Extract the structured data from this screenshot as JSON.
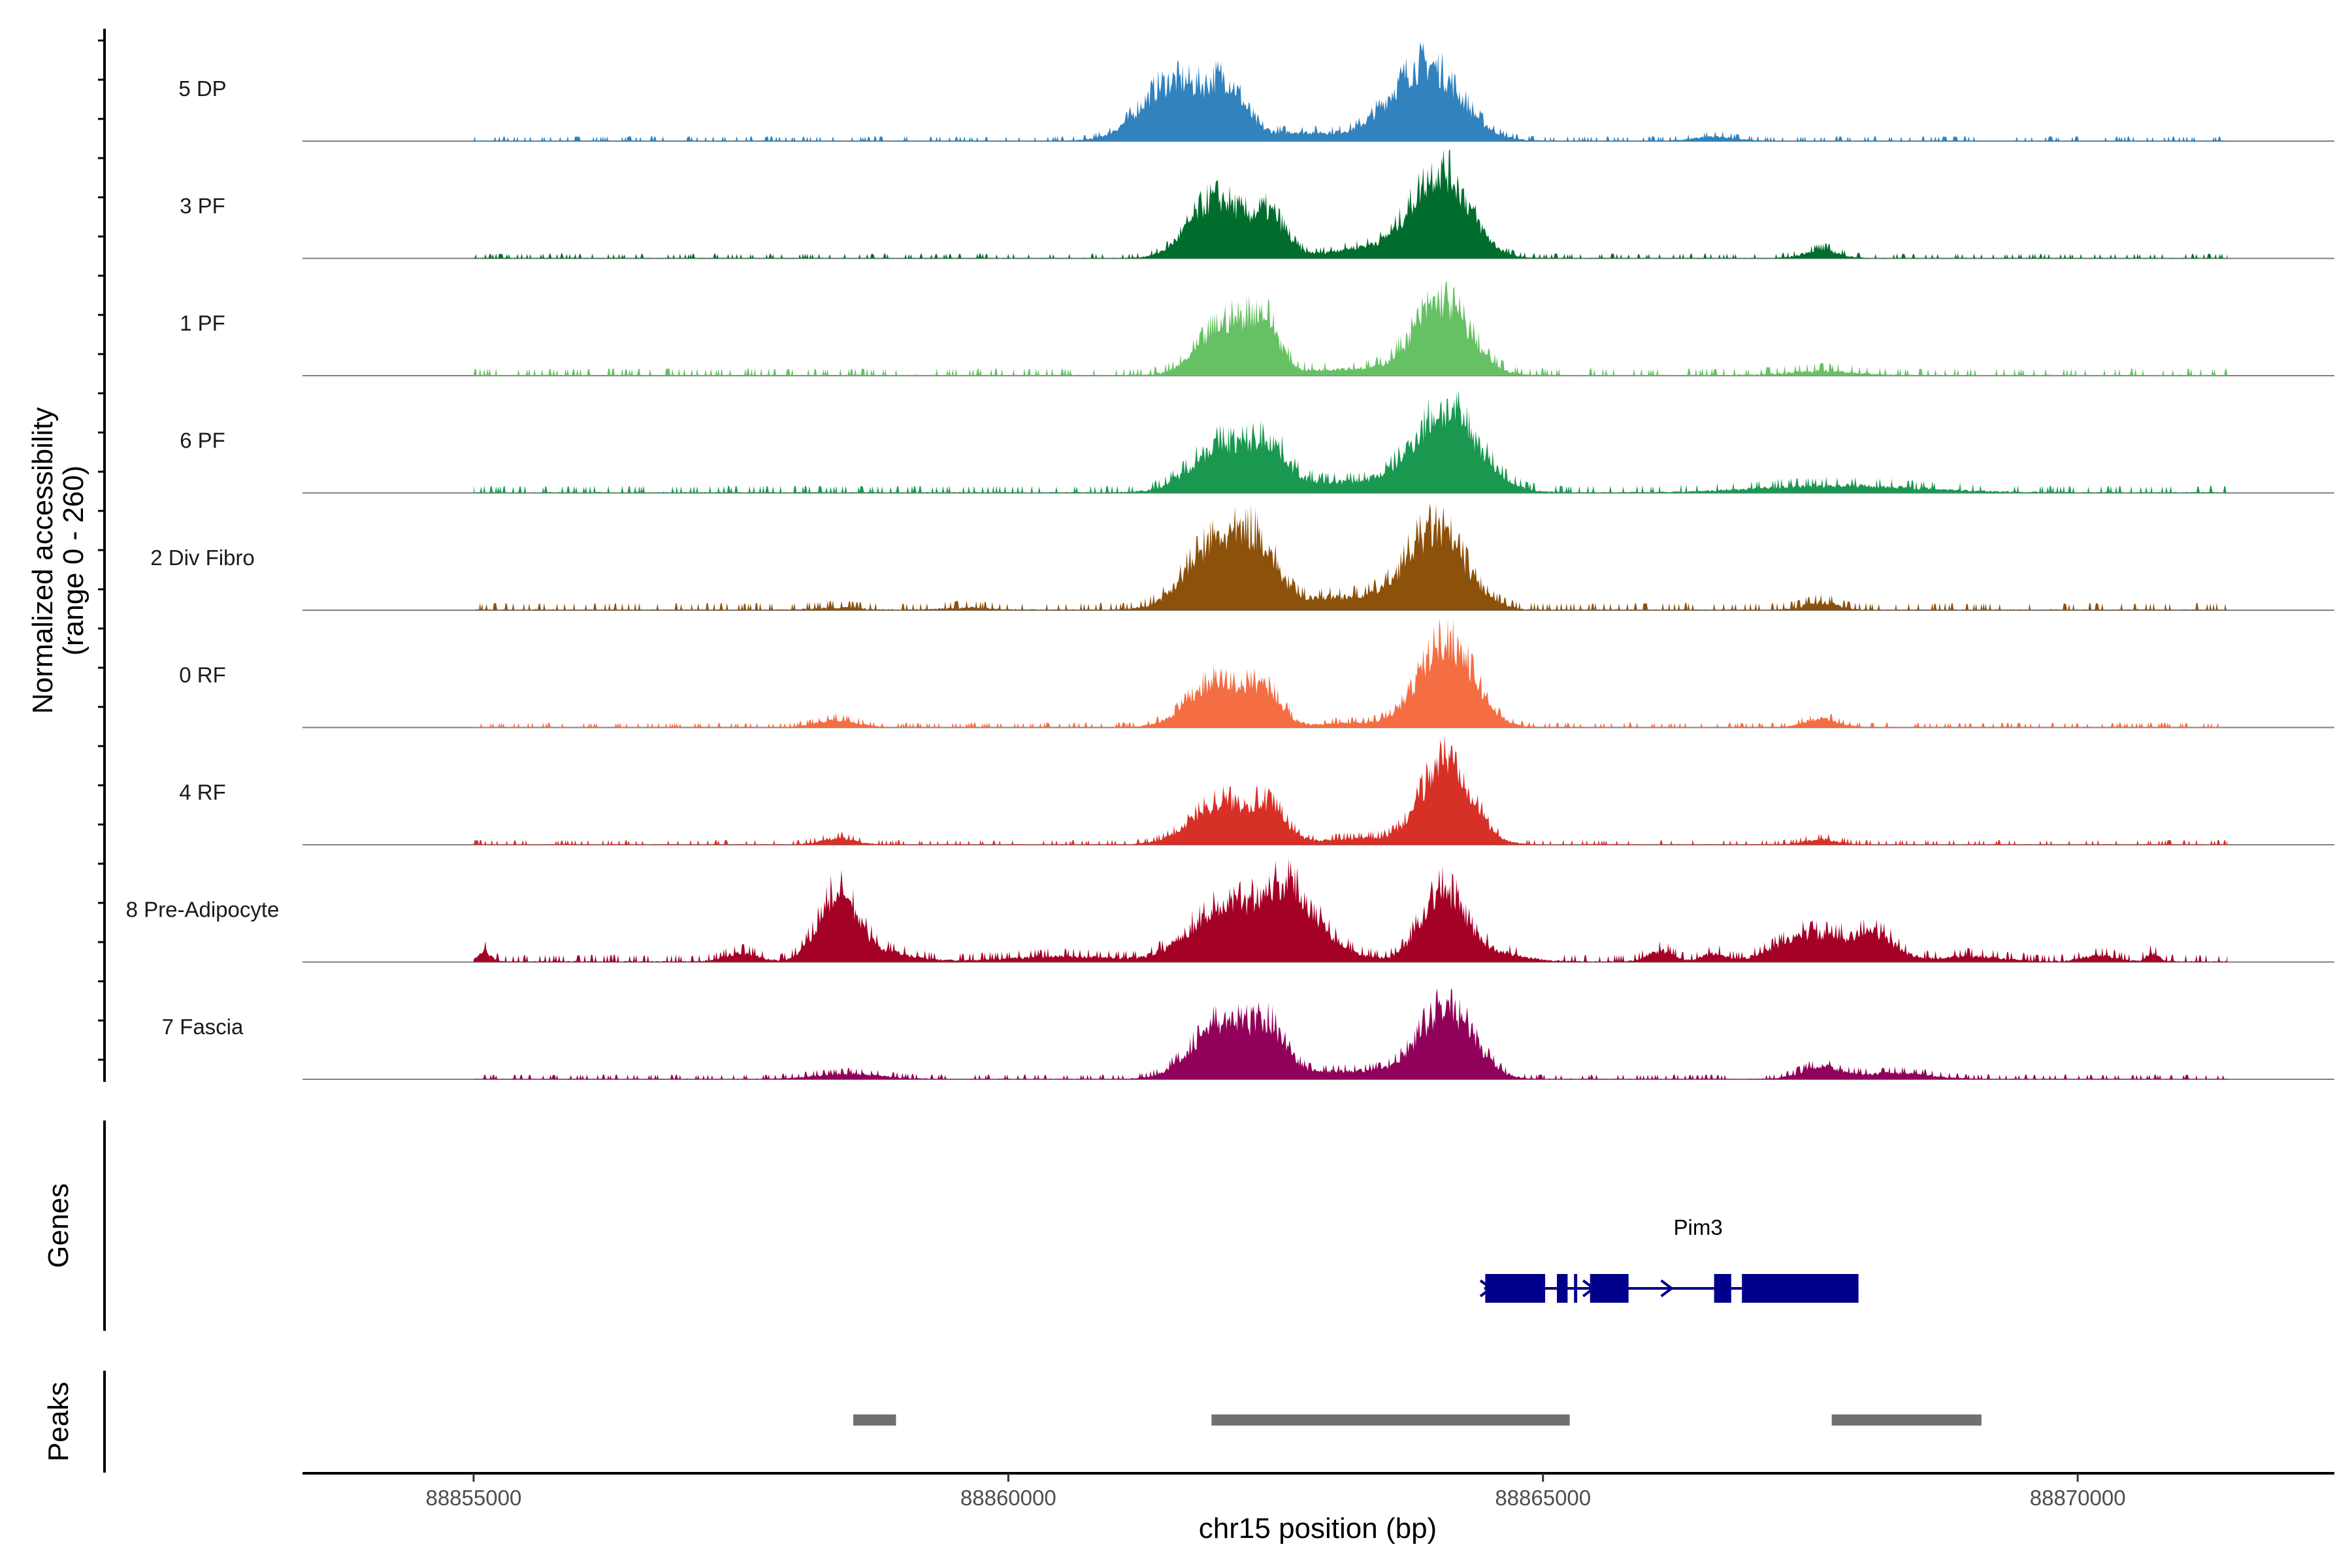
{
  "chart_data": {
    "type": "area",
    "chromosome": "chr15",
    "region": [
      88853400,
      88872400
    ],
    "xlabel": "chr15 position (bp)",
    "x_ticks": [
      88855000,
      88860000,
      88865000,
      88870000
    ],
    "x_tick_labels": [
      "88855000",
      "88860000",
      "88865000",
      "88870000"
    ],
    "coverage_ylabel_line1": "Normalized accessibility",
    "coverage_ylabel_line2": "(range 0 - 260)",
    "ylim": [
      0,
      260
    ],
    "genes_label": "Genes",
    "peaks_label": "Peaks",
    "series": [
      {
        "name": "5 DP",
        "color": "#3182BD",
        "background": 2,
        "peaks": [
          [
            88861550,
            55,
            300
          ],
          [
            88862050,
            40,
            160
          ],
          [
            88862700,
            8,
            450
          ],
          [
            88863900,
            70,
            320
          ],
          [
            88866600,
            4,
            180
          ]
        ]
      },
      {
        "name": "3 PF",
        "color": "#006D2C",
        "background": 2,
        "peaks": [
          [
            88861950,
            55,
            250
          ],
          [
            88862450,
            35,
            150
          ],
          [
            88863400,
            10,
            400
          ],
          [
            88864050,
            78,
            260
          ],
          [
            88867600,
            8,
            150
          ]
        ]
      },
      {
        "name": "1 PF",
        "color": "#66C164",
        "background": 3,
        "peaks": [
          [
            88862050,
            48,
            250
          ],
          [
            88862400,
            38,
            140
          ],
          [
            88863150,
            6,
            350
          ],
          [
            88864050,
            68,
            260
          ],
          [
            88867600,
            4,
            300
          ]
        ]
      },
      {
        "name": "6 PF",
        "color": "#1A9850",
        "background": 3,
        "peaks": [
          [
            88862000,
            42,
            280
          ],
          [
            88862450,
            30,
            160
          ],
          [
            88863050,
            10,
            700
          ],
          [
            88864100,
            72,
            300
          ],
          [
            88867500,
            5,
            600
          ],
          [
            88868300,
            3,
            600
          ]
        ]
      },
      {
        "name": "2 Div Fibro",
        "color": "#8C510A",
        "background": 3,
        "peaks": [
          [
            88861950,
            62,
            280
          ],
          [
            88862350,
            42,
            170
          ],
          [
            88863100,
            12,
            500
          ],
          [
            88864000,
            72,
            270
          ],
          [
            88867600,
            7,
            150
          ],
          [
            88858400,
            2,
            200
          ],
          [
            88859600,
            2,
            200
          ]
        ]
      },
      {
        "name": "0 RF",
        "color": "#F46D43",
        "background": 2,
        "peaks": [
          [
            88861950,
            42,
            260
          ],
          [
            88862400,
            30,
            150
          ],
          [
            88863250,
            4,
            400
          ],
          [
            88864100,
            80,
            250
          ],
          [
            88858400,
            7,
            180
          ],
          [
            88867600,
            8,
            150
          ]
        ]
      },
      {
        "name": "4 RF",
        "color": "#D73027",
        "background": 2,
        "peaks": [
          [
            88862000,
            40,
            280
          ],
          [
            88862450,
            26,
            160
          ],
          [
            88863300,
            6,
            350
          ],
          [
            88864100,
            80,
            230
          ],
          [
            88858400,
            6,
            150
          ],
          [
            88867600,
            5,
            150
          ]
        ]
      },
      {
        "name": "8 Pre-Adipocyte",
        "color": "#A50026",
        "background": 3,
        "peaks": [
          [
            88858400,
            58,
            180
          ],
          [
            88858750,
            10,
            300
          ],
          [
            88862000,
            48,
            320
          ],
          [
            88862600,
            58,
            250
          ],
          [
            88862950,
            12,
            300
          ],
          [
            88864050,
            62,
            200
          ],
          [
            88864450,
            10,
            300
          ],
          [
            88867500,
            26,
            300
          ],
          [
            88868100,
            24,
            200
          ],
          [
            88855100,
            10,
            60
          ],
          [
            88857500,
            8,
            150
          ],
          [
            88860500,
            5,
            500
          ],
          [
            88866100,
            10,
            120
          ],
          [
            88866600,
            8,
            100
          ],
          [
            88869000,
            5,
            300
          ],
          [
            88870200,
            6,
            150
          ],
          [
            88870700,
            8,
            60
          ]
        ]
      },
      {
        "name": "7 Fascia",
        "color": "#91005A",
        "background": 2,
        "peaks": [
          [
            88862000,
            52,
            280
          ],
          [
            88862450,
            36,
            160
          ],
          [
            88863200,
            8,
            500
          ],
          [
            88864100,
            65,
            250
          ],
          [
            88858500,
            5,
            300
          ],
          [
            88867600,
            12,
            180
          ],
          [
            88868300,
            6,
            300
          ]
        ]
      }
    ],
    "gene": {
      "name": "Pim3",
      "strand": "+",
      "start": 88864450,
      "end": 88867950,
      "color": "#00008B",
      "exons": [
        [
          88864460,
          88865020
        ],
        [
          88865130,
          88865230
        ],
        [
          88865290,
          88865320
        ],
        [
          88865440,
          88865800
        ],
        [
          88866600,
          88866760
        ],
        [
          88866860,
          88867950
        ]
      ],
      "arrows": [
        88864470,
        88865430,
        88866160
      ]
    },
    "peak_regions": [
      [
        88858550,
        88858950
      ],
      [
        88861900,
        88865250
      ],
      [
        88867700,
        88869100
      ]
    ],
    "peak_color": "#707070"
  }
}
